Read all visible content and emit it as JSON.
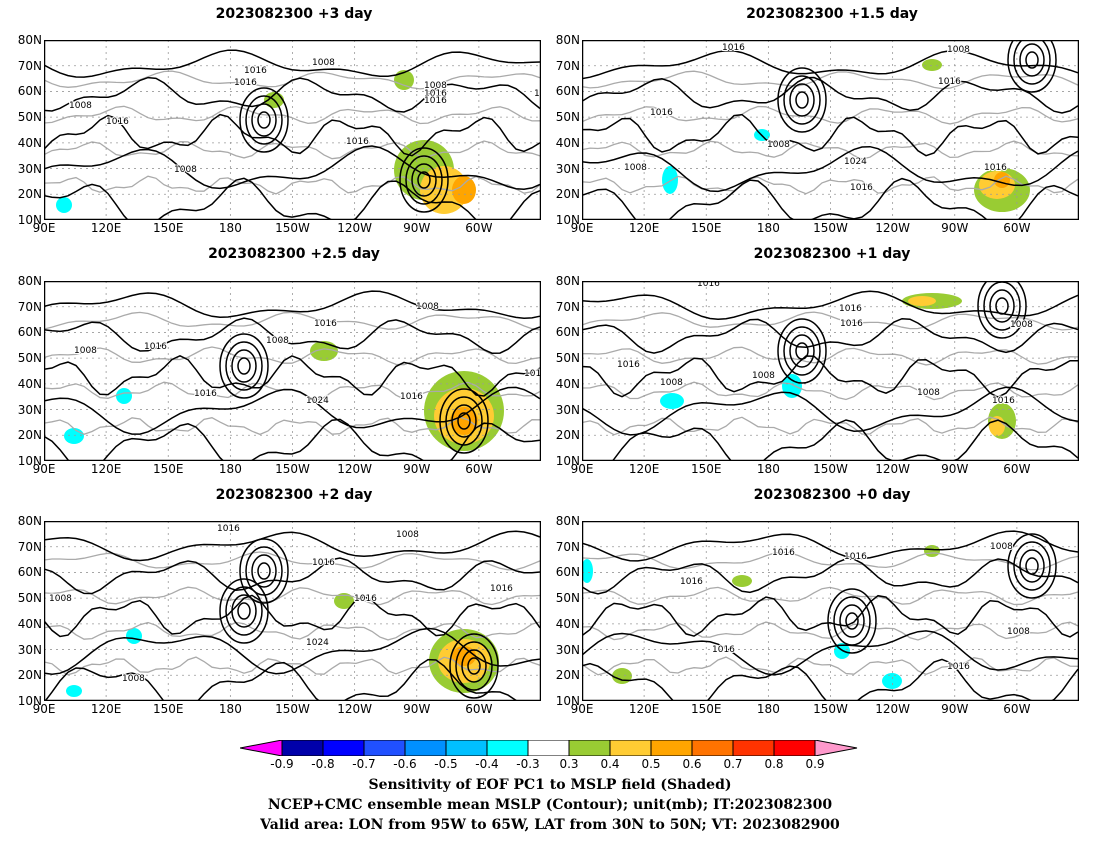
{
  "panels": [
    {
      "title": "2023082300 +3 day",
      "contour_labels": [
        "1016",
        "1008",
        "1016",
        "1008",
        "1016",
        "1016",
        "1008",
        "1008",
        "1016",
        "1016",
        "101"
      ]
    },
    {
      "title": "2023082300 +1.5 day",
      "contour_labels": [
        "1016",
        "1008",
        "1016",
        "1016",
        "1008",
        "1024",
        "1008",
        "1016",
        "1016"
      ]
    },
    {
      "title": "2023082300 +2.5 day",
      "contour_labels": [
        "1008",
        "1008",
        "1016",
        "1008",
        "1016",
        "1016",
        "1024",
        "1016",
        "1016"
      ]
    },
    {
      "title": "2023082300 +1 day",
      "contour_labels": [
        "1016",
        "1016",
        "1016",
        "1008",
        "1016",
        "1008",
        "1008",
        "1008",
        "1016"
      ]
    },
    {
      "title": "2023082300 +2 day",
      "contour_labels": [
        "1016",
        "1008",
        "1016",
        "1008",
        "1016",
        "1016",
        "1024",
        "1008"
      ]
    },
    {
      "title": "2023082300 +0 day",
      "contour_labels": [
        "1016",
        "1008",
        "1016",
        "1016",
        "1016",
        "1008",
        "1016"
      ]
    }
  ],
  "axes": {
    "lat_labels": [
      "80N",
      "70N",
      "60N",
      "50N",
      "40N",
      "30N",
      "20N",
      "10N"
    ],
    "lon_labels": [
      "90E",
      "120E",
      "150E",
      "180",
      "150W",
      "120W",
      "90W",
      "60W"
    ]
  },
  "colorbar": {
    "ticks": [
      "-0.9",
      "-0.8",
      "-0.7",
      "-0.6",
      "-0.5",
      "-0.4",
      "-0.3",
      "0.3",
      "0.4",
      "0.5",
      "0.6",
      "0.7",
      "0.8",
      "0.9"
    ],
    "colors": [
      "#ff00ff",
      "#0000aa",
      "#0000ff",
      "#2050ff",
      "#0090ff",
      "#00c0ff",
      "#00ffff",
      "#ffffff",
      "#99cc33",
      "#ffcc33",
      "#ffa500",
      "#ff7300",
      "#ff3300",
      "#ff0000",
      "#ff99cc"
    ]
  },
  "caption": {
    "line1": "Sensitivity of EOF PC1 to MSLP field (Shaded)",
    "line2": "NCEP+CMC ensemble mean MSLP (Contour); unit(mb); IT:2023082300",
    "line3": "Valid area: LON from 95W to 65W, LAT from 30N to 50N; VT: 2023082900"
  }
}
